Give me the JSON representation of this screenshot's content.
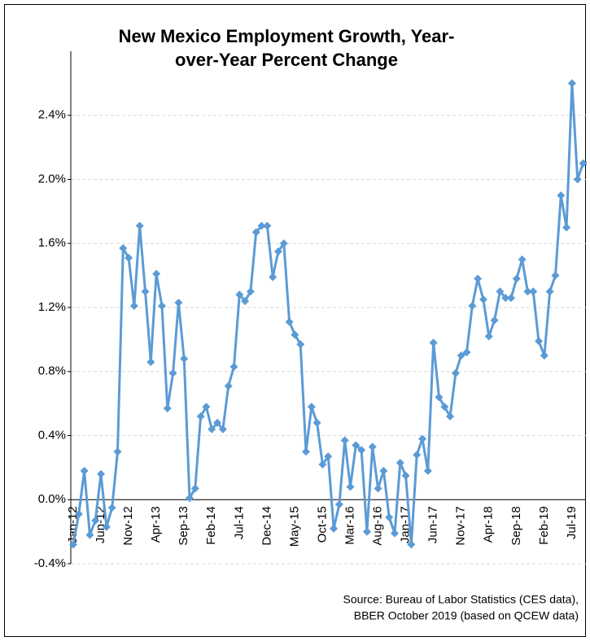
{
  "chart_data": {
    "type": "line",
    "title": [
      "New Mexico Employment Growth, Year-",
      "over-Year Percent Change"
    ],
    "source": [
      "Source: Bureau of Labor Statistics (CES data),",
      "BBER October 2019 (based on QCEW data)"
    ],
    "categories": [
      "Jan-12",
      null,
      null,
      null,
      null,
      "Jun-12",
      null,
      null,
      null,
      null,
      "Nov-12",
      null,
      null,
      null,
      null,
      "Apr-13",
      null,
      null,
      null,
      null,
      "Sep-13",
      null,
      null,
      null,
      null,
      "Feb-14",
      null,
      null,
      null,
      null,
      "Jul-14",
      null,
      null,
      null,
      null,
      "Dec-14",
      null,
      null,
      null,
      null,
      "May-15",
      null,
      null,
      null,
      null,
      "Oct-15",
      null,
      null,
      null,
      null,
      "Mar-16",
      null,
      null,
      null,
      null,
      "Aug-16",
      null,
      null,
      null,
      null,
      "Jan-17",
      null,
      null,
      null,
      null,
      "Jun-17",
      null,
      null,
      null,
      null,
      "Nov-17",
      null,
      null,
      null,
      null,
      "Apr-18",
      null,
      null,
      null,
      null,
      "Sep-18",
      null,
      null,
      null,
      null,
      "Feb-19",
      null,
      null,
      null,
      null,
      "Jul-19",
      null,
      null,
      null
    ],
    "series": [
      {
        "name": "Employment growth",
        "color": "#5b9bd5",
        "values": [
          -0.28,
          -0.09,
          0.18,
          -0.22,
          -0.13,
          0.16,
          -0.17,
          -0.05,
          0.3,
          1.57,
          1.51,
          1.21,
          1.71,
          1.3,
          0.86,
          1.41,
          1.21,
          0.57,
          0.79,
          1.23,
          0.88,
          0.01,
          0.07,
          0.52,
          0.58,
          0.44,
          0.48,
          0.44,
          0.71,
          0.83,
          1.28,
          1.24,
          1.3,
          1.67,
          1.71,
          1.71,
          1.39,
          1.55,
          1.6,
          1.11,
          1.03,
          0.97,
          0.3,
          0.58,
          0.48,
          0.22,
          0.27,
          -0.18,
          -0.03,
          0.37,
          0.08,
          0.34,
          0.31,
          -0.2,
          0.33,
          0.07,
          0.18,
          -0.11,
          -0.21,
          0.23,
          0.15,
          -0.28,
          0.28,
          0.38,
          0.18,
          0.98,
          0.64,
          0.58,
          0.52,
          0.79,
          0.9,
          0.92,
          1.21,
          1.38,
          1.25,
          1.02,
          1.12,
          1.3,
          1.26,
          1.26,
          1.38,
          1.5,
          1.3,
          1.3,
          0.99,
          0.9,
          1.3,
          1.4,
          1.9,
          1.7,
          2.6,
          2.0,
          2.1,
          2.1
        ]
      }
    ],
    "ylim": [
      -0.4,
      2.8
    ],
    "yticks": [
      {
        "value": -0.4,
        "label": "-0.4%"
      },
      {
        "value": 0,
        "label": "0.0%"
      },
      {
        "value": 0.4,
        "label": "0.4%"
      },
      {
        "value": 0.8,
        "label": "0.8%"
      },
      {
        "value": 1.2,
        "label": "1.2%"
      },
      {
        "value": 1.6,
        "label": "1.6%"
      },
      {
        "value": 2.0,
        "label": "2.0%"
      },
      {
        "value": 2.4,
        "label": "2.4%"
      }
    ],
    "grid": true
  }
}
